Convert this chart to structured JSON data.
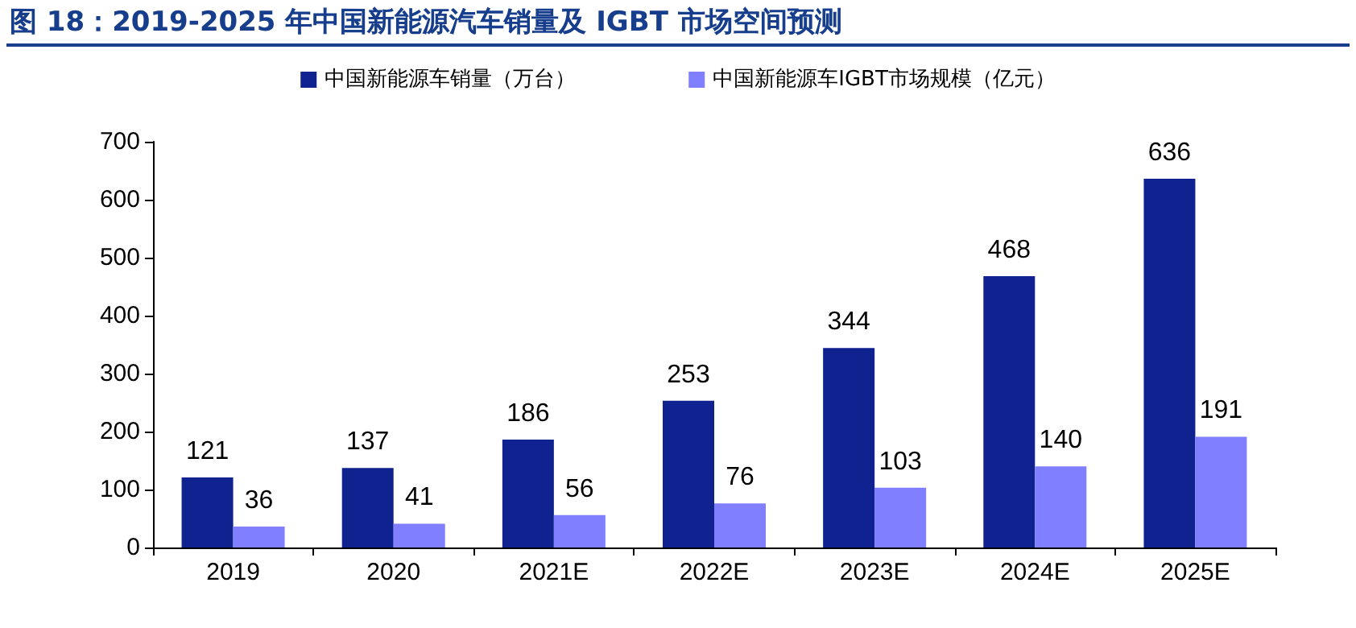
{
  "chart_data": {
    "type": "bar",
    "title": "图 18：2019-2025 年中国新能源汽车销量及 IGBT 市场空间预测",
    "categories": [
      "2019",
      "2020",
      "2021E",
      "2022E",
      "2023E",
      "2024E",
      "2025E"
    ],
    "series": [
      {
        "name": "中国新能源车销量（万台）",
        "color": "#0f228f",
        "values": [
          121,
          137,
          186,
          253,
          344,
          468,
          636
        ]
      },
      {
        "name": "中国新能源车IGBT市场规模（亿元）",
        "color": "#7f7fff",
        "values": [
          36,
          41,
          56,
          76,
          103,
          140,
          191
        ]
      }
    ],
    "ylim": [
      0,
      700
    ],
    "yticks": [
      0,
      100,
      200,
      300,
      400,
      500,
      600,
      700
    ],
    "grid": false,
    "legend": "top",
    "data_labels": true
  }
}
